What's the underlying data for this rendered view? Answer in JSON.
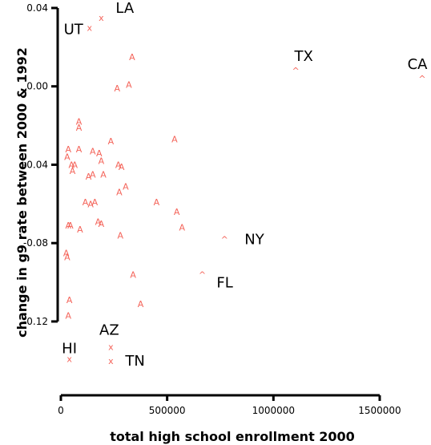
{
  "chart_data": {
    "type": "scatter",
    "title": "",
    "xlabel": "total high school enrollment 2000",
    "ylabel": "change in g9 rate between 2000 & 1992",
    "xlim": [
      -15000,
      1730000
    ],
    "ylim": [
      -0.1544,
      0.0408
    ],
    "x_ticks": [
      0,
      500000,
      1000000,
      1500000
    ],
    "x_tick_labels": [
      "0",
      "500000",
      "1000000",
      "1500000"
    ],
    "y_ticks": [
      0.04,
      0.0,
      -0.04,
      -0.08,
      -0.12
    ],
    "y_tick_labels": [
      "0.04",
      "0.00",
      "-0.04",
      "-0.08",
      "-0.12"
    ],
    "grid": false,
    "legend": "none",
    "marker_color": "#f4645a",
    "points": [
      {
        "x": 190000,
        "y": 0.035,
        "marker": "X",
        "label": "LA"
      },
      {
        "x": 135000,
        "y": 0.03,
        "marker": "X",
        "label": "UT"
      },
      {
        "x": 1105000,
        "y": 0.008,
        "marker": "^",
        "label": "TX"
      },
      {
        "x": 1700000,
        "y": 0.004,
        "marker": "^",
        "label": "CA"
      },
      {
        "x": 770000,
        "y": -0.078,
        "marker": "^",
        "label": "NY"
      },
      {
        "x": 665000,
        "y": -0.096,
        "marker": "^",
        "label": "FL"
      },
      {
        "x": 235000,
        "y": -0.133,
        "marker": "X",
        "label": "AZ"
      },
      {
        "x": 40000,
        "y": -0.139,
        "marker": "X",
        "label": "HI"
      },
      {
        "x": 235000,
        "y": -0.14,
        "marker": "X",
        "label": "TN"
      },
      {
        "x": 335000,
        "y": 0.015,
        "marker": "A"
      },
      {
        "x": 320000,
        "y": 0.001,
        "marker": "A"
      },
      {
        "x": 265000,
        "y": -0.001,
        "marker": "A"
      },
      {
        "x": 85000,
        "y": -0.018,
        "marker": "A"
      },
      {
        "x": 85000,
        "y": -0.021,
        "marker": "A"
      },
      {
        "x": 235000,
        "y": -0.028,
        "marker": "A"
      },
      {
        "x": 535000,
        "y": -0.027,
        "marker": "A"
      },
      {
        "x": 35000,
        "y": -0.032,
        "marker": "A"
      },
      {
        "x": 85000,
        "y": -0.032,
        "marker": "A"
      },
      {
        "x": 150000,
        "y": -0.033,
        "marker": "A"
      },
      {
        "x": 180000,
        "y": -0.034,
        "marker": "A"
      },
      {
        "x": 30000,
        "y": -0.036,
        "marker": "A"
      },
      {
        "x": 190000,
        "y": -0.038,
        "marker": "A"
      },
      {
        "x": 50000,
        "y": -0.04,
        "marker": "A"
      },
      {
        "x": 65000,
        "y": -0.04,
        "marker": "A"
      },
      {
        "x": 270000,
        "y": -0.04,
        "marker": "A"
      },
      {
        "x": 285000,
        "y": -0.041,
        "marker": "A"
      },
      {
        "x": 55000,
        "y": -0.043,
        "marker": "A"
      },
      {
        "x": 150000,
        "y": -0.045,
        "marker": "A"
      },
      {
        "x": 200000,
        "y": -0.045,
        "marker": "A"
      },
      {
        "x": 130000,
        "y": -0.046,
        "marker": "A"
      },
      {
        "x": 305000,
        "y": -0.051,
        "marker": "A"
      },
      {
        "x": 275000,
        "y": -0.054,
        "marker": "A"
      },
      {
        "x": 450000,
        "y": -0.059,
        "marker": "A"
      },
      {
        "x": 115000,
        "y": -0.059,
        "marker": "A"
      },
      {
        "x": 160000,
        "y": -0.059,
        "marker": "A"
      },
      {
        "x": 140000,
        "y": -0.06,
        "marker": "A"
      },
      {
        "x": 545000,
        "y": -0.064,
        "marker": "A"
      },
      {
        "x": 175000,
        "y": -0.069,
        "marker": "A"
      },
      {
        "x": 190000,
        "y": -0.07,
        "marker": "A"
      },
      {
        "x": 35000,
        "y": -0.071,
        "marker": "A"
      },
      {
        "x": 45000,
        "y": -0.071,
        "marker": "A"
      },
      {
        "x": 570000,
        "y": -0.072,
        "marker": "A"
      },
      {
        "x": 90000,
        "y": -0.073,
        "marker": "A"
      },
      {
        "x": 280000,
        "y": -0.076,
        "marker": "A"
      },
      {
        "x": 25000,
        "y": -0.085,
        "marker": "A"
      },
      {
        "x": 30000,
        "y": -0.087,
        "marker": "A"
      },
      {
        "x": 340000,
        "y": -0.096,
        "marker": "A"
      },
      {
        "x": 40000,
        "y": -0.109,
        "marker": "A"
      },
      {
        "x": 375000,
        "y": -0.111,
        "marker": "A"
      },
      {
        "x": 35000,
        "y": -0.117,
        "marker": "A"
      }
    ]
  }
}
